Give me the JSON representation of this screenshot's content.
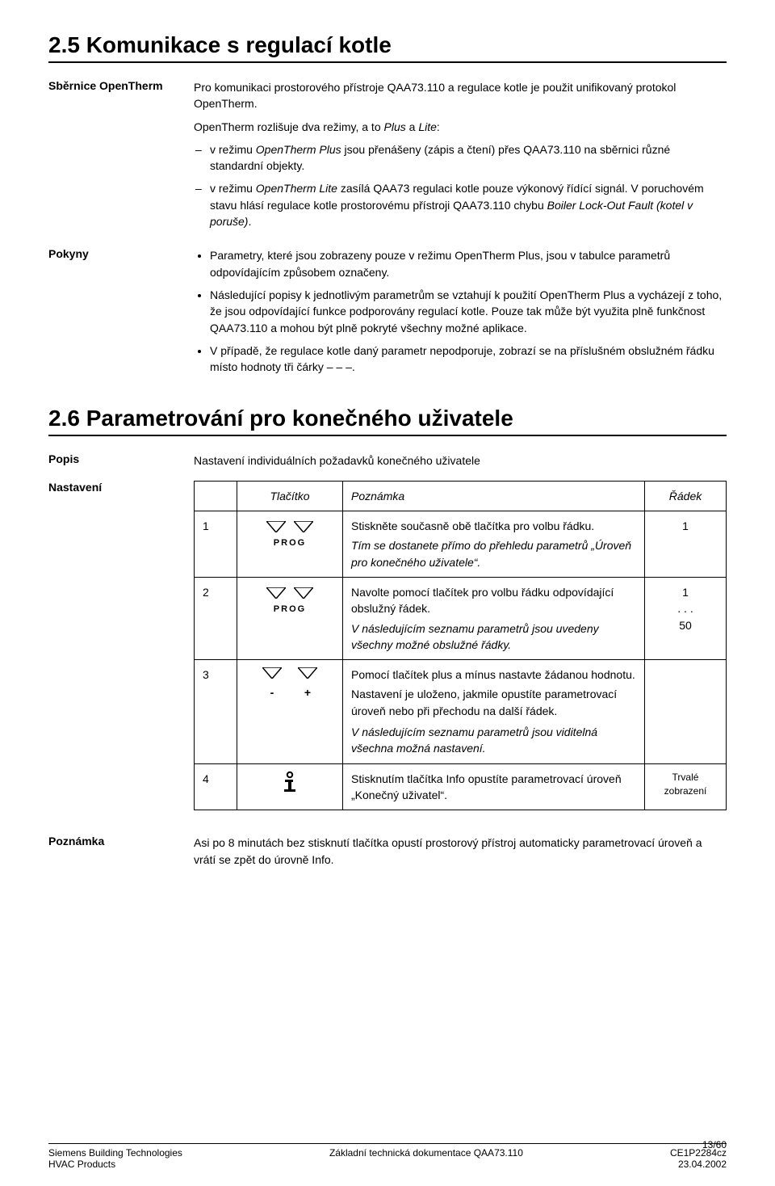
{
  "sec25": {
    "heading": "2.5 Komunikace s regulací kotle",
    "rows": [
      {
        "side": "Sběrnice OpenTherm",
        "paras": [
          "Pro komunikaci prostorového přístroje QAA73.110 a regulace kotle je použit unifikovaný protokol OpenTherm.",
          "OpenTherm rozlišuje dva režimy, a to Plus a Lite:"
        ],
        "dash_items": [
          "v režimu OpenTherm Plus jsou přenášeny (zápis a čtení) přes QAA73.110 na sběrnici různé standardní objekty.",
          "v režimu OpenTherm Lite zasílá QAA73 regulaci kotle pouze výkonový řídící signál. V poruchovém stavu hlásí regulace kotle prostorovému přístroji QAA73.110 chybu Boiler Lock-Out Fault (kotel v poruše)."
        ]
      },
      {
        "side": "Pokyny",
        "dot_items": [
          "Parametry, které jsou zobrazeny pouze v režimu OpenTherm Plus, jsou v tabulce parametrů odpovídajícím způsobem označeny.",
          "Následující popisy k jednotlivým parametrům se vztahují k použití OpenTherm Plus a vycházejí z toho, že jsou odpovídající funkce podporovány regulací kotle. Pouze tak může být využita plně funkčnost QAA73.110 a mohou být plně pokryté všechny možné aplikace.",
          "V případě, že regulace kotle daný parametr nepodporuje, zobrazí se na příslušném obslužném řádku místo hodnoty tři čárky – – –."
        ]
      }
    ]
  },
  "sec26": {
    "heading": "2.6 Parametrování pro konečného uživatele",
    "desc_side": "Popis",
    "desc_text": "Nastavení individuálních požadavků konečného uživatele",
    "table_side": "Nastavení",
    "header": {
      "c1": "",
      "c2": "Tlačítko",
      "c3": "Poznámka",
      "c4": "Řádek"
    },
    "rows": [
      {
        "n": "1",
        "btn": "prog",
        "text1": "Stiskněte současně obě tlačítka pro volbu řádku.",
        "text2": "Tím se dostanete přímo do přehledu parametrů „Úroveň pro konečného uživatele“.",
        "rk": "1"
      },
      {
        "n": "2",
        "btn": "prog",
        "text1": "Navolte pomocí tlačítek pro volbu řádku odpovídající obslužný řádek.",
        "text2": "V následujícím seznamu parametrů jsou uvedeny všechny možné obslužné řádky.",
        "rk": "1\n. . .\n50"
      },
      {
        "n": "3",
        "btn": "plusminus",
        "text1": "Pomocí tlačítek plus a mínus nastavte žádanou hodnotu.",
        "text2": "Nastavení je uloženo, jakmile opustíte parametrovací úroveň nebo při přechodu na další řádek.",
        "text3": "V následujícím seznamu parametrů jsou viditelná všechna možná nastavení.",
        "rk": ""
      },
      {
        "n": "4",
        "btn": "info",
        "text1": "Stisknutím tlačítka Info opustíte parametrovací úroveň „Konečný uživatel“.",
        "rk": "Trvalé\nzobrazení"
      }
    ],
    "note_side": "Poznámka",
    "note_text": "Asi po 8 minutách bez stisknutí tlačítka opustí prostorový přístroj automaticky parametrovací úroveň a vrátí se zpět do úrovně Info."
  },
  "labels": {
    "prog": "PROG",
    "minus": "-",
    "plus": "+"
  },
  "footer": {
    "page": "13/60",
    "l1": "Siemens Building Technologies",
    "l2": "HVAC Products",
    "mid": "Základní technická dokumentace QAA73.110",
    "r1": "CE1P2284cz",
    "r2": "23.04.2002"
  },
  "colors": {
    "text": "#000000",
    "background": "#ffffff",
    "border": "#000000"
  }
}
